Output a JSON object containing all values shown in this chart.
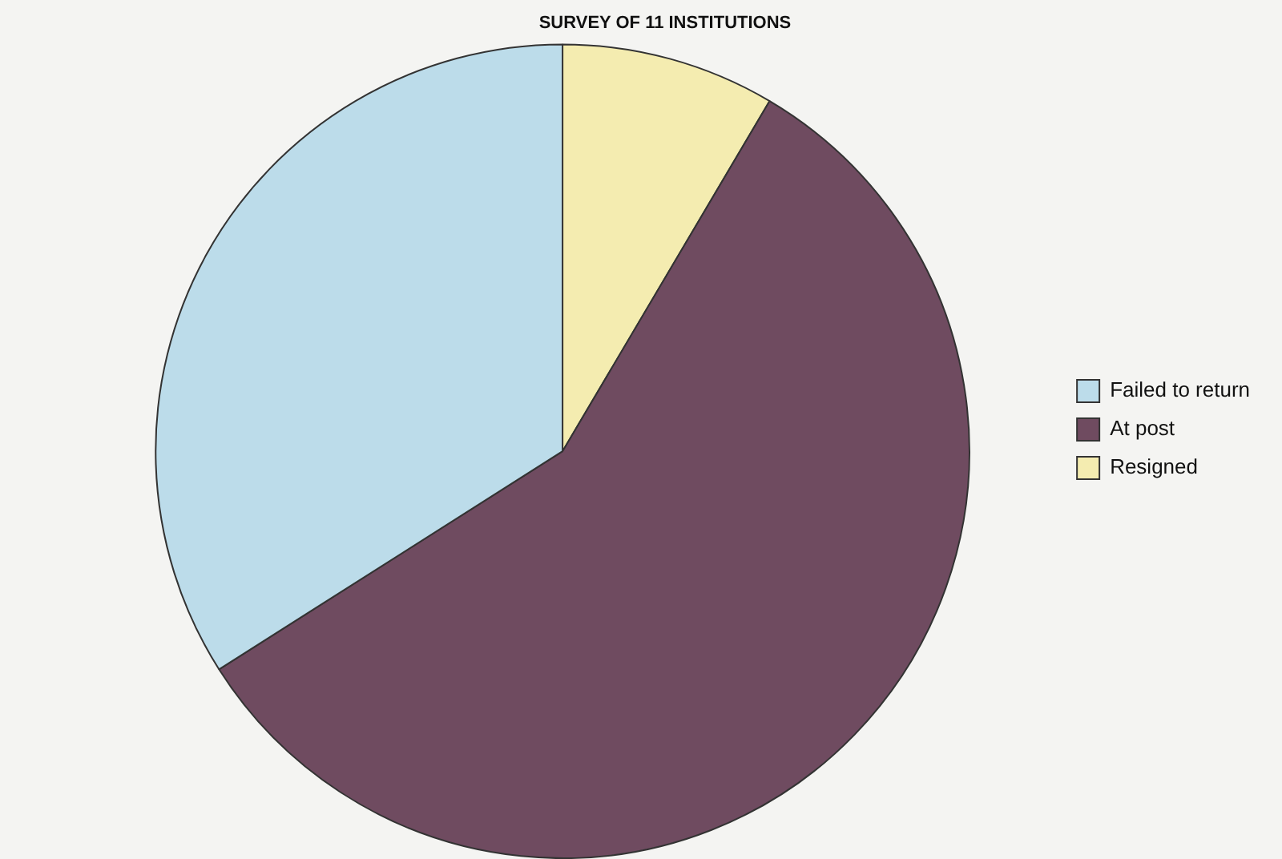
{
  "chart_data": {
    "type": "pie",
    "title": "SURVEY OF 11 INSTITUTIONS",
    "categories": [
      "Failed to return",
      "At post",
      "Resigned"
    ],
    "values": [
      34,
      57.5,
      8.5
    ],
    "colors": [
      "#bcdcea",
      "#6f4b60",
      "#f4ecb0"
    ],
    "legend": "right"
  }
}
